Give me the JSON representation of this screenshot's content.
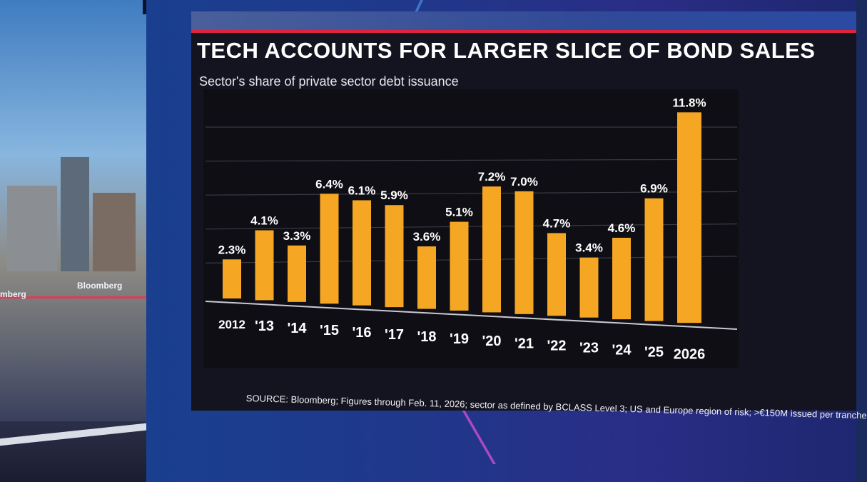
{
  "background": {
    "left_logo": "Bloomberg",
    "left_logo_partial": "mberg"
  },
  "colors": {
    "bar": "#f5a623",
    "accent_red": "#e0233f",
    "panel": "#141420",
    "plot": "#0e0e14",
    "text": "#ffffff"
  },
  "chart_data": {
    "type": "bar",
    "title": "TECH ACCOUNTS FOR LARGER SLICE OF BOND SALES",
    "subtitle": "Sector's share of private sector debt issuance",
    "categories": [
      "2012",
      "'13",
      "'14",
      "'15",
      "'16",
      "'17",
      "'18",
      "'19",
      "'20",
      "'21",
      "'22",
      "'23",
      "'24",
      "'25",
      "2026"
    ],
    "values": [
      2.3,
      4.1,
      3.3,
      6.4,
      6.1,
      5.9,
      3.6,
      5.1,
      7.2,
      7.0,
      4.7,
      3.4,
      4.6,
      6.9,
      11.8
    ],
    "labels": [
      "2.3%",
      "4.1%",
      "3.3%",
      "6.4%",
      "6.1%",
      "5.9%",
      "3.6%",
      "5.1%",
      "7.2%",
      "7.0%",
      "4.7%",
      "3.4%",
      "4.6%",
      "6.9%",
      "11.8%"
    ],
    "unit": "%",
    "ylim": [
      0,
      12
    ],
    "gridlines": [
      2,
      4,
      6,
      8,
      10
    ],
    "grid": true,
    "xlabel": "",
    "ylabel": "",
    "source": "SOURCE: Bloomberg; Figures through Feb. 11, 2026; sector as defined by BCLASS Level 3; US and Europe region of risk; >€150M issued per tranche"
  }
}
